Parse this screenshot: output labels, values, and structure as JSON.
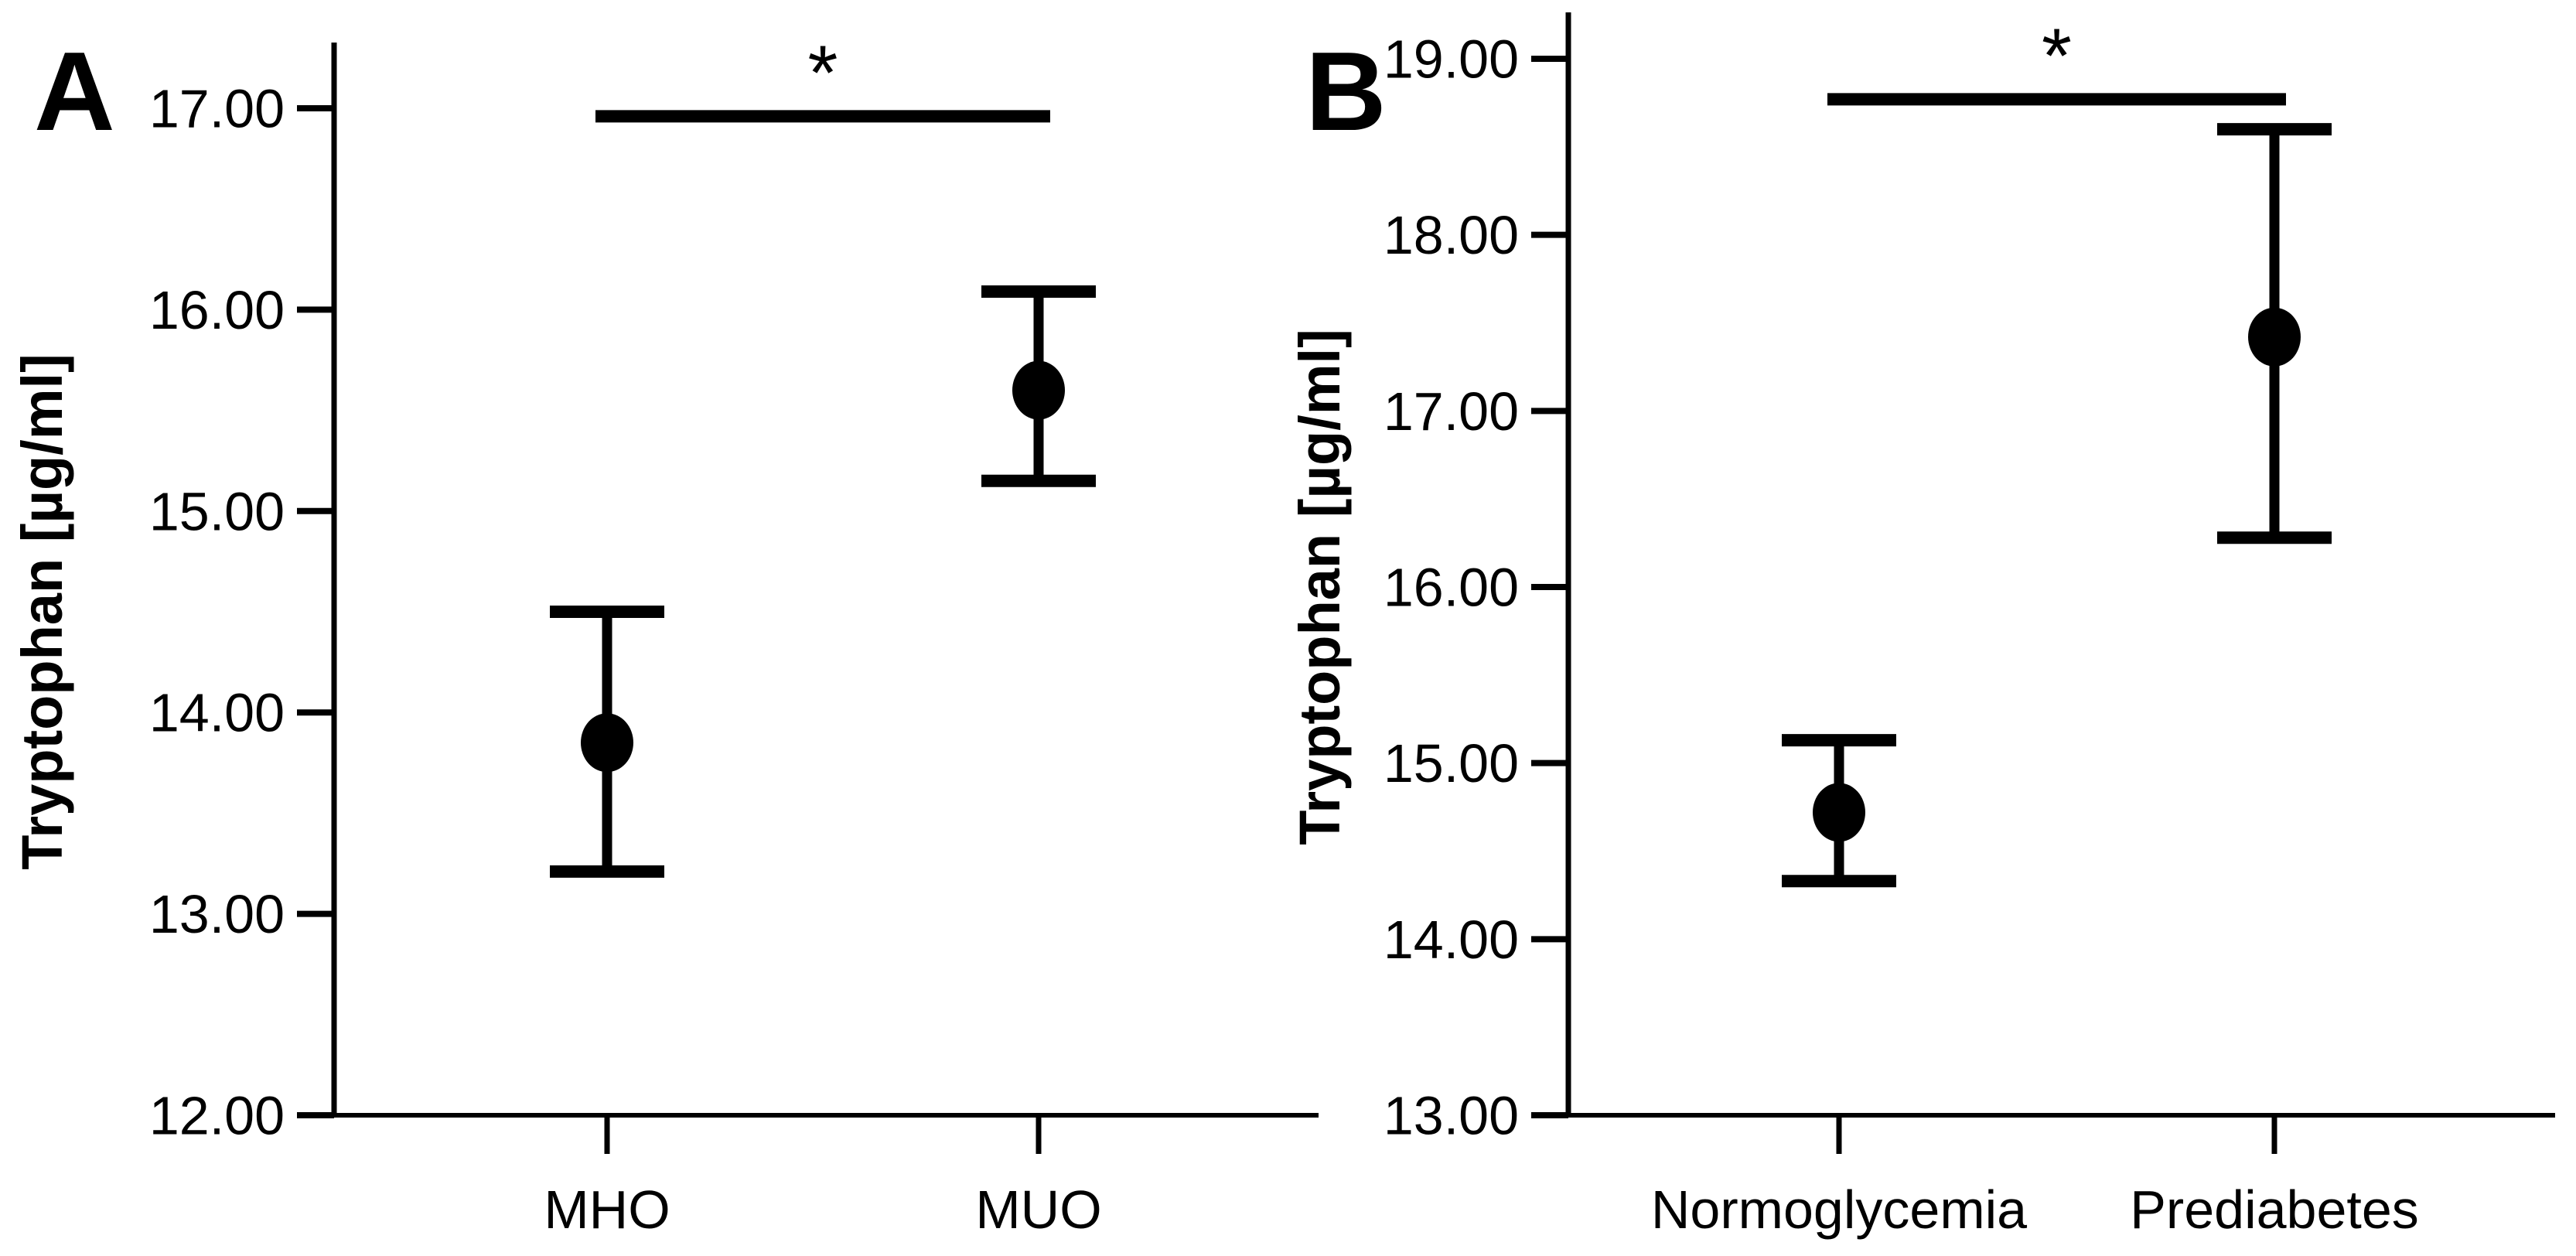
{
  "figure": {
    "background_color": "#ffffff",
    "ink_color": "#000000",
    "y_axis_title": "Tryptophan [µg/ml]"
  },
  "chart_data": [
    {
      "type": "scatter",
      "subtype": "mean-with-error-bars",
      "panel_letter": "A",
      "title": "",
      "xlabel": "",
      "ylabel": "Tryptophan [µg/ml]",
      "ylim": [
        12.0,
        17.0
      ],
      "yticks": [
        17.0,
        16.0,
        15.0,
        14.0,
        13.0,
        12.0
      ],
      "ytick_decimals": 2,
      "grid": false,
      "legend": null,
      "categories": [
        "MHO",
        "MUO"
      ],
      "series": [
        {
          "name": "mean_ci",
          "points": [
            {
              "category": "MHO",
              "mean": 13.85,
              "ci_low": 13.21,
              "ci_high": 14.5
            },
            {
              "category": "MUO",
              "mean": 15.6,
              "ci_low": 15.15,
              "ci_high": 16.09
            }
          ]
        }
      ],
      "significance": {
        "label": "*",
        "between": [
          "MHO",
          "MUO"
        ],
        "bar_y": 16.96
      }
    },
    {
      "type": "scatter",
      "subtype": "mean-with-error-bars",
      "panel_letter": "B",
      "title": "",
      "xlabel": "",
      "ylabel": "Tryptophan [µg/ml]",
      "ylim": [
        13.0,
        19.0
      ],
      "yticks": [
        19.0,
        18.0,
        17.0,
        16.0,
        15.0,
        14.0,
        13.0
      ],
      "ytick_decimals": 2,
      "grid": false,
      "legend": null,
      "categories": [
        "Normoglycemia",
        "Prediabetes"
      ],
      "series": [
        {
          "name": "mean_ci",
          "points": [
            {
              "category": "Normoglycemia",
              "mean": 14.72,
              "ci_low": 14.33,
              "ci_high": 15.13
            },
            {
              "category": "Prediabetes",
              "mean": 17.42,
              "ci_low": 16.28,
              "ci_high": 18.6
            }
          ]
        }
      ],
      "significance": {
        "label": "*",
        "between": [
          "Normoglycemia",
          "Prediabetes"
        ],
        "bar_y": 18.77
      }
    }
  ]
}
